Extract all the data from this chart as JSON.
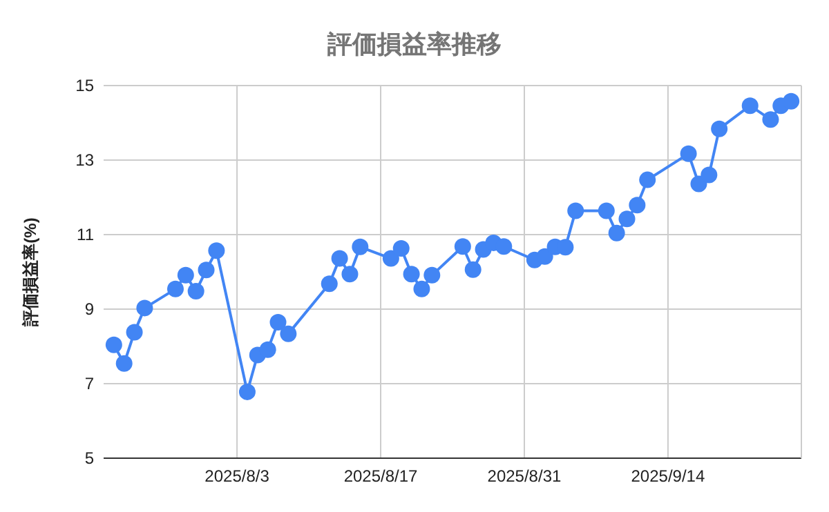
{
  "chart_data": {
    "type": "line",
    "title": "評価損益率推移",
    "ylabel": "評価損益率(%)",
    "x": [
      "2025-07-22",
      "2025-07-23",
      "2025-07-24",
      "2025-07-25",
      "2025-07-28",
      "2025-07-29",
      "2025-07-30",
      "2025-07-31",
      "2025-08-01",
      "2025-08-04",
      "2025-08-05",
      "2025-08-06",
      "2025-08-07",
      "2025-08-08",
      "2025-08-12",
      "2025-08-13",
      "2025-08-14",
      "2025-08-15",
      "2025-08-18",
      "2025-08-19",
      "2025-08-20",
      "2025-08-21",
      "2025-08-22",
      "2025-08-25",
      "2025-08-26",
      "2025-08-27",
      "2025-08-28",
      "2025-08-29",
      "2025-09-01",
      "2025-09-02",
      "2025-09-03",
      "2025-09-04",
      "2025-09-05",
      "2025-09-08",
      "2025-09-09",
      "2025-09-10",
      "2025-09-11",
      "2025-09-12",
      "2025-09-16",
      "2025-09-17",
      "2025-09-18",
      "2025-09-19",
      "2025-09-22",
      "2025-09-24",
      "2025-09-25",
      "2025-09-26"
    ],
    "series": [
      {
        "color": "#4285f4",
        "values": [
          8.04,
          7.54,
          8.38,
          9.03,
          9.54,
          9.91,
          9.48,
          10.05,
          10.57,
          6.78,
          7.77,
          7.91,
          8.65,
          8.34,
          9.68,
          10.36,
          9.94,
          10.67,
          10.36,
          10.63,
          9.94,
          9.54,
          9.91,
          10.68,
          10.06,
          10.6,
          10.78,
          10.68,
          10.32,
          10.41,
          10.67,
          10.66,
          11.64,
          11.64,
          11.04,
          11.42,
          11.79,
          12.47,
          13.17,
          12.36,
          12.6,
          13.84,
          14.46,
          14.09,
          14.46,
          14.58
        ]
      }
    ],
    "xlim": [
      "2025-07-21",
      "2025-09-27"
    ],
    "xticks": [
      {
        "value": "2025-08-03",
        "label": "2025/8/3"
      },
      {
        "value": "2025-08-17",
        "label": "2025/8/17"
      },
      {
        "value": "2025-08-31",
        "label": "2025/8/31"
      },
      {
        "value": "2025-09-14",
        "label": "2025/9/14"
      }
    ],
    "ylim": [
      5,
      15
    ],
    "yticks": [
      5,
      7,
      9,
      11,
      13,
      15
    ],
    "grid": true,
    "marker": "circle",
    "line_style": "solid"
  }
}
